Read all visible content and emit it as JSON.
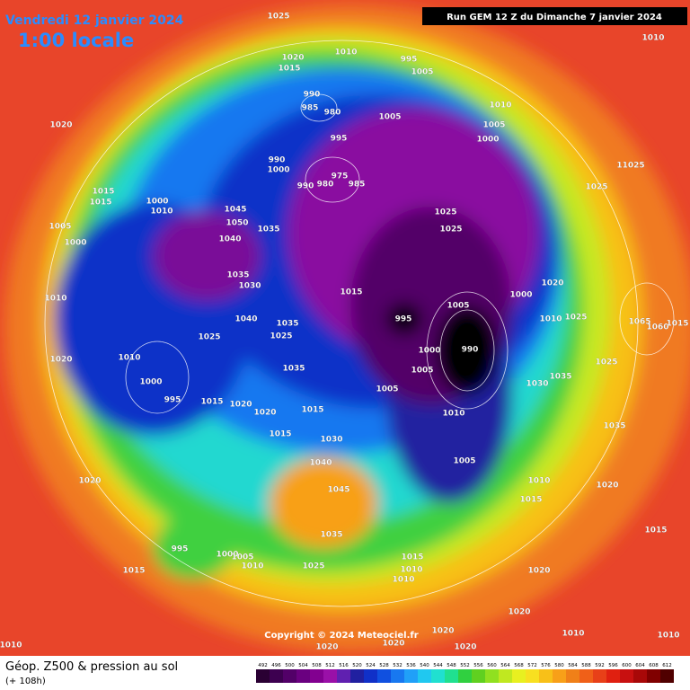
{
  "header": {
    "date": "Vendredi 12 janvier 2024",
    "time": "1:00 locale",
    "run": "Run GEM 12 Z du Dimanche 7 janvier 2024"
  },
  "footer": {
    "title": "Géop. Z500 & pression au sol",
    "lead": "(+ 108h)",
    "copyright": "Copyright © 2024 Meteociel.fr"
  },
  "legend": {
    "values": [
      492,
      496,
      500,
      504,
      508,
      512,
      516,
      520,
      524,
      528,
      532,
      536,
      540,
      544,
      548,
      552,
      556,
      560,
      564,
      568,
      572,
      576,
      580,
      584,
      588,
      592,
      596,
      600,
      604,
      608,
      612
    ],
    "colors": [
      "#2a0033",
      "#3d0050",
      "#520068",
      "#6a0080",
      "#820090",
      "#9a10a8",
      "#6020b0",
      "#2020a0",
      "#1030c8",
      "#1050e0",
      "#1878f0",
      "#20a0f8",
      "#20c8f0",
      "#20e0d0",
      "#20e090",
      "#30d040",
      "#60d020",
      "#90e020",
      "#c0e820",
      "#e8f020",
      "#f8e020",
      "#f8c018",
      "#f8a018",
      "#f08018",
      "#f06018",
      "#e84018",
      "#e02010",
      "#c81010",
      "#a80808",
      "#800000",
      "#500000"
    ]
  },
  "isobars": [
    1025,
    1010,
    1020,
    1015,
    995,
    1005,
    1010,
    1020,
    990,
    985,
    980,
    1010,
    1005,
    1005,
    1000,
    995,
    990,
    1000,
    975,
    980,
    985,
    990,
    11025,
    1025,
    1015,
    1015,
    1000,
    1010,
    1045,
    1025,
    1050,
    1040,
    1025,
    1035,
    1005,
    1000,
    1035,
    1030,
    1015,
    1000,
    1020,
    1010,
    995,
    1005,
    1010,
    1025,
    1040,
    1035,
    1025,
    1025,
    1065,
    1060,
    1015,
    1000,
    990,
    1010,
    1020,
    1035,
    1025,
    1005,
    1000,
    1035,
    995,
    1005,
    1030,
    1015,
    1020,
    1020,
    1015,
    1010,
    1035,
    1015,
    1030,
    1040,
    1005,
    1010,
    1020,
    1020,
    1045,
    1015,
    1035,
    1015,
    1015,
    995,
    1000,
    1005,
    1010,
    1015,
    1025,
    1010,
    1010,
    1020,
    1020,
    1020,
    1010,
    1010,
    1010,
    1020,
    1020,
    1020
  ]
}
